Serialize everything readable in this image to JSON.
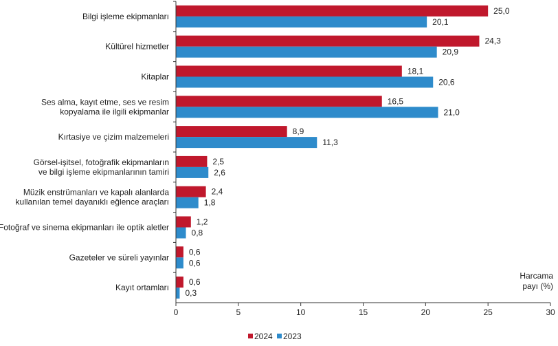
{
  "chart_data": {
    "type": "bar",
    "orientation": "horizontal",
    "categories": [
      [
        "Bilgi işleme ekipmanları"
      ],
      [
        "Kültürel hizmetler"
      ],
      [
        "Kitaplar"
      ],
      [
        "Ses alma, kayıt etme, ses ve resim",
        "kopyalama ile ilgili ekipmanlar"
      ],
      [
        "Kırtasiye ve çizim malzemeleri"
      ],
      [
        "Görsel-işitsel, fotoğrafik ekipmanların",
        "ve bilgi işleme ekipmanlarının tamiri"
      ],
      [
        "Müzik enstrümanları ve kapalı alanlarda",
        "kullanılan temel dayanıklı eğlence araçları"
      ],
      [
        "Fotoğraf ve sinema ekipmanları ile optik aletler"
      ],
      [
        "Gazeteler ve süreli yayınlar"
      ],
      [
        "Kayıt ortamları"
      ]
    ],
    "series": [
      {
        "name": "2024",
        "color": "#C0182C",
        "values": [
          25.0,
          24.3,
          18.1,
          16.5,
          8.9,
          2.5,
          2.4,
          1.2,
          0.6,
          0.6
        ],
        "labels": [
          "25,0",
          "24,3",
          "18,1",
          "16,5",
          "8,9",
          "2,5",
          "2,4",
          "1,2",
          "0,6",
          "0,6"
        ]
      },
      {
        "name": "2023",
        "color": "#2E8BCB",
        "values": [
          20.1,
          20.9,
          20.6,
          21.0,
          11.3,
          2.6,
          1.8,
          0.8,
          0.6,
          0.3
        ],
        "labels": [
          "20,1",
          "20,9",
          "20,6",
          "21,0",
          "11,3",
          "2,6",
          "1,8",
          "0,8",
          "0,6",
          "0,3"
        ]
      }
    ],
    "xlim": [
      0,
      30
    ],
    "xticks": [
      0,
      5,
      10,
      15,
      20,
      25,
      30
    ],
    "xlabel": [
      "Harcama",
      "payı (%)"
    ],
    "grid": false,
    "legend": "bottom"
  }
}
